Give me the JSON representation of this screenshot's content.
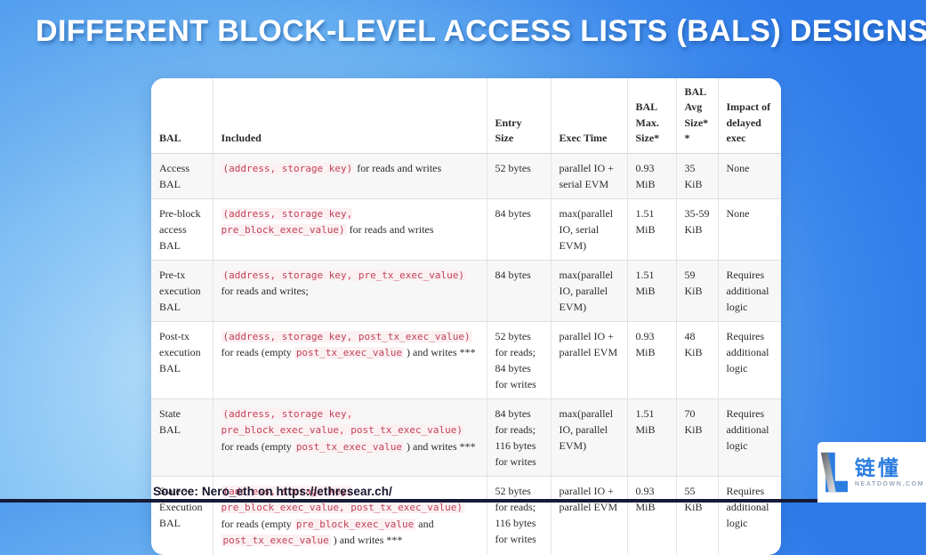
{
  "title": "DIFFERENT BLOCK-LEVEL ACCESS LISTS (BALS) DESIGNS",
  "source_line": "Source: Nero_eth on https://ethresear.ch/",
  "logo": {
    "icon": "neatdown-L-mark",
    "name_cn": "链懂",
    "domain": "NEATDOWN.COM"
  },
  "colors": {
    "background_light": "#b2ddfa",
    "background_deep": "#2e7ae9",
    "code_text": "#c24258",
    "code_background": "#fbf0f2",
    "row_stripe": "#f7f7f7",
    "logo_blue": "#2b7de0",
    "title_text": "#ffffff"
  },
  "table": {
    "headers": [
      "BAL",
      "Included",
      "Entry Size",
      "Exec Time",
      "BAL Max. Size*",
      "BAL Avg Size**",
      "Impact of delayed exec"
    ],
    "rows": [
      {
        "bal": "Access BAL",
        "included": [
          {
            "code": true,
            "text": "(address, storage key)"
          },
          {
            "code": false,
            "text": " for reads and writes"
          }
        ],
        "entry_size": "52 bytes",
        "exec_time": "parallel IO + serial EVM",
        "max_size": "0.93 MiB",
        "avg_size": "35 KiB",
        "impact": "None"
      },
      {
        "bal": "Pre-block access BAL",
        "included": [
          {
            "code": true,
            "text": "(address, storage key, pre_block_exec_value)"
          },
          {
            "code": false,
            "text": " for reads and writes"
          }
        ],
        "entry_size": "84 bytes",
        "exec_time": "max(parallel IO, serial EVM)",
        "max_size": "1.51 MiB",
        "avg_size": "35-59 KiB",
        "impact": "None"
      },
      {
        "bal": "Pre-tx execution BAL",
        "included": [
          {
            "code": true,
            "text": "(address, storage key, pre_tx_exec_value)"
          },
          {
            "code": false,
            "text": " for reads and writes;"
          }
        ],
        "entry_size": "84 bytes",
        "exec_time": "max(parallel IO, parallel EVM)",
        "max_size": "1.51 MiB",
        "avg_size": "59 KiB",
        "impact": "Requires additional logic"
      },
      {
        "bal": "Post-tx execution BAL",
        "included": [
          {
            "code": true,
            "text": "(address, storage key, post_tx_exec_value)"
          },
          {
            "code": false,
            "text": " for reads (empty "
          },
          {
            "code": true,
            "text": "post_tx_exec_value"
          },
          {
            "code": false,
            "text": " ) and writes ***"
          }
        ],
        "entry_size": "52 bytes for reads; 84 bytes for writes",
        "exec_time": "parallel IO + parallel EVM",
        "max_size": "0.93 MiB",
        "avg_size": "48 KiB",
        "impact": "Requires additional logic"
      },
      {
        "bal": "State BAL",
        "included": [
          {
            "code": true,
            "text": "(address, storage key, pre_block_exec_value, post_tx_exec_value)"
          },
          {
            "code": false,
            "text": " for reads (empty "
          },
          {
            "code": true,
            "text": "post_tx_exec_value"
          },
          {
            "code": false,
            "text": " ) and writes ***"
          }
        ],
        "entry_size": "84 bytes for reads; 116 bytes for writes",
        "exec_time": "max(parallel IO, parallel EVM)",
        "max_size": "1.51 MiB",
        "avg_size": "70 KiB",
        "impact": "Requires additional logic"
      },
      {
        "bal": "State + Execution BAL",
        "included": [
          {
            "code": true,
            "text": "(address, storage key, pre_block_exec_value, post_tx_exec_value)"
          },
          {
            "code": false,
            "text": " for reads (empty "
          },
          {
            "code": true,
            "text": "pre_block_exec_value"
          },
          {
            "code": false,
            "text": " and "
          },
          {
            "code": true,
            "text": "post_tx_exec_value"
          },
          {
            "code": false,
            "text": " ) and writes ***"
          }
        ],
        "entry_size": "52 bytes for reads; 116 bytes for writes",
        "exec_time": "parallel IO + parallel EVM",
        "max_size": "0.93 MiB",
        "avg_size": "55 KiB",
        "impact": "Requires additional logic"
      }
    ]
  }
}
